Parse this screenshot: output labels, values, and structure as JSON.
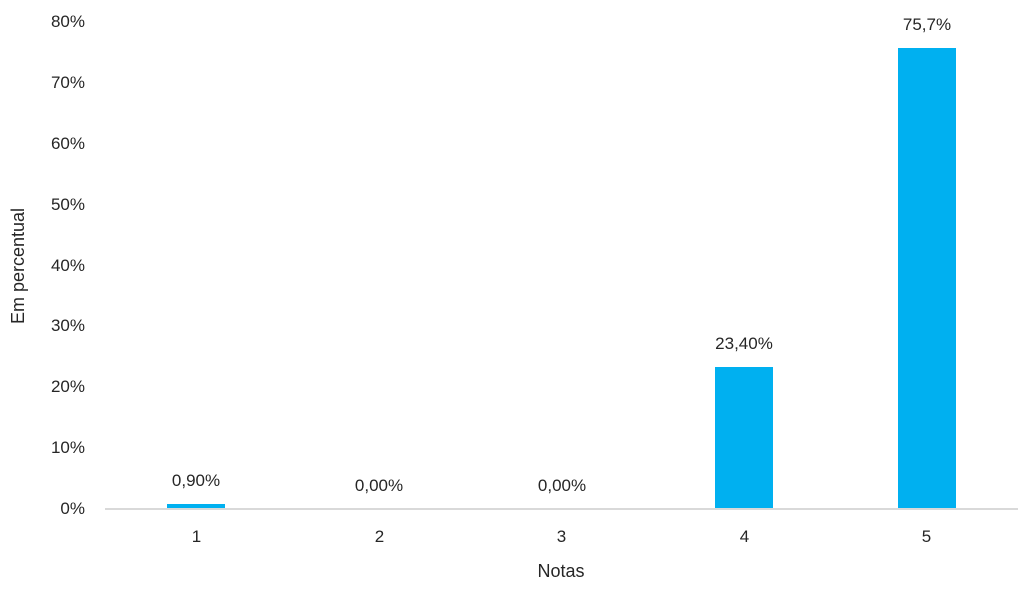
{
  "chart_data": {
    "type": "bar",
    "title": "",
    "xlabel": "Notas",
    "ylabel": "Em percentual",
    "categories": [
      "1",
      "2",
      "3",
      "4",
      "5"
    ],
    "values": [
      0.9,
      0.0,
      0.0,
      23.4,
      75.7
    ],
    "data_labels": [
      "0,90%",
      "0,00%",
      "0,00%",
      "23,40%",
      "75,7%"
    ],
    "ylim": [
      0,
      80
    ],
    "yticks": [
      0,
      10,
      20,
      30,
      40,
      50,
      60,
      70,
      80
    ],
    "ytick_labels": [
      "0%",
      "10%",
      "20%",
      "30%",
      "40%",
      "50%",
      "60%",
      "70%",
      "80%"
    ],
    "grid": "off",
    "legend": "none",
    "bar_color": "#00B0F0",
    "axis_line_color": "#D9D9D9",
    "text_color": "#262626",
    "background_color": "#FFFFFF"
  }
}
